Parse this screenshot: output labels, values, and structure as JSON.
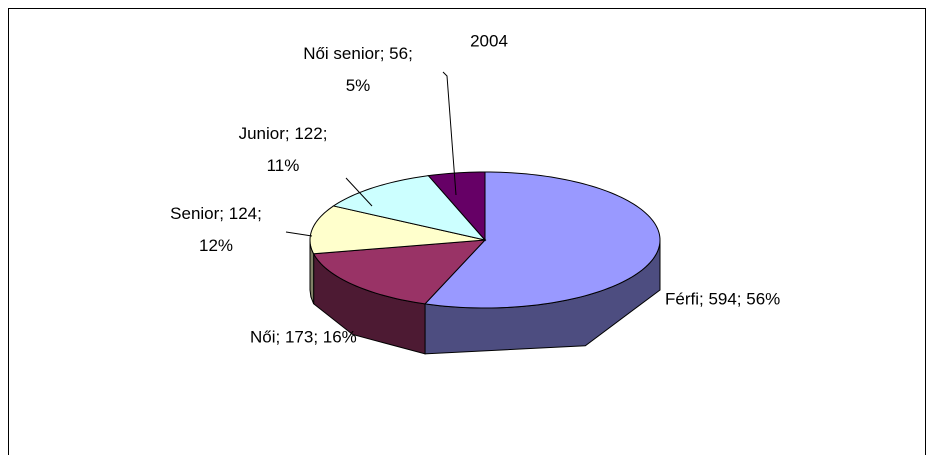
{
  "chart_data": {
    "type": "pie",
    "title": "2004",
    "categories": [
      "Férfi",
      "Női",
      "Senior",
      "Junior",
      "Női senior"
    ],
    "values": [
      594,
      173,
      124,
      122,
      56
    ],
    "value_labels": [
      "Férfi; 594; 56%",
      "Női; 173; 16%",
      "Senior; 124; 12%",
      "Junior; 122; 11%",
      "Női senior; 56; 5%"
    ],
    "colors": [
      "#9999ff",
      "#993366",
      "#ffffcc",
      "#ccffff",
      "#660066"
    ]
  }
}
